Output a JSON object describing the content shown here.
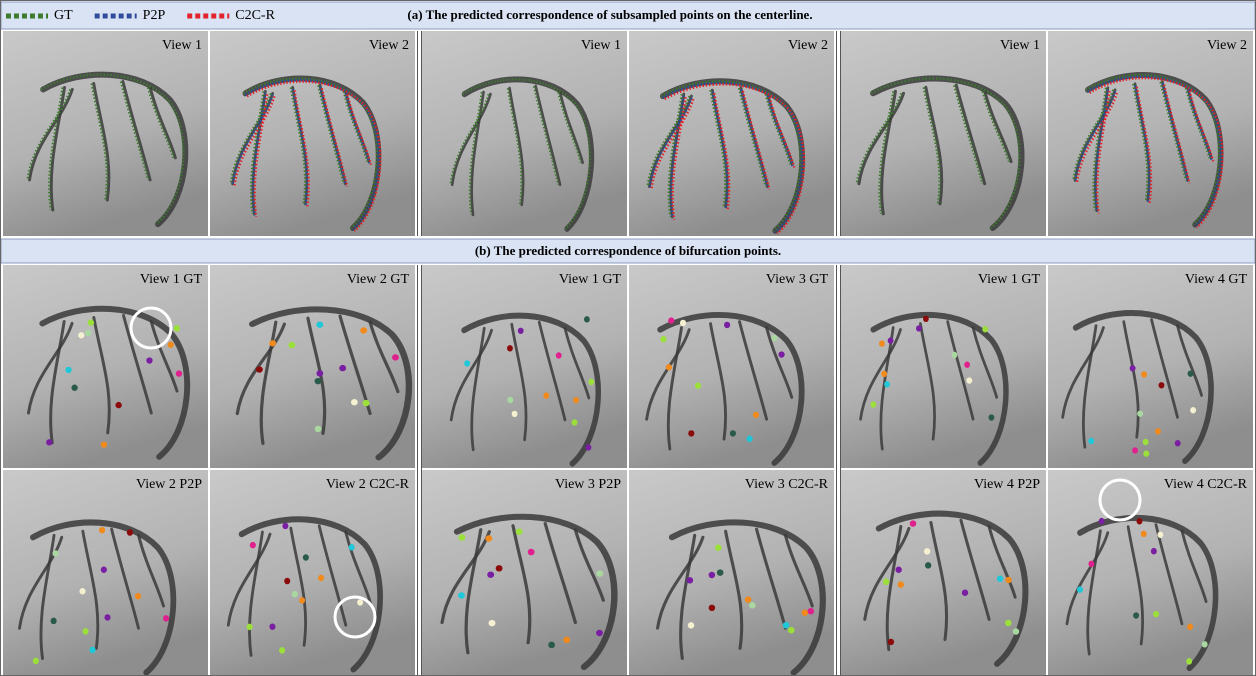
{
  "legend": [
    {
      "label": "GT",
      "color": "#3d7a2e"
    },
    {
      "label": "P2P",
      "color": "#2d4e9e"
    },
    {
      "label": "C2C-R",
      "color": "#e3222b"
    }
  ],
  "section_a": {
    "title": "(a) The predicted correspondence of subsampled points on the centerline.",
    "panels": [
      "View 1",
      "View 2",
      "View 1",
      "View 2",
      "View 1",
      "View 2"
    ]
  },
  "section_b": {
    "title": "(b) The predicted correspondence of bifurcation points.",
    "panels": [
      [
        "View 1 GT",
        "View 2 GT",
        "View 1 GT",
        "View 3 GT",
        "View 1 GT",
        "View 4 GT"
      ],
      [
        "View 2 P2P",
        "View 2 C2C-R",
        "View 3 P2P",
        "View 3 C2C-R",
        "View 4 P2P",
        "View 4 C2C-R"
      ]
    ]
  }
}
